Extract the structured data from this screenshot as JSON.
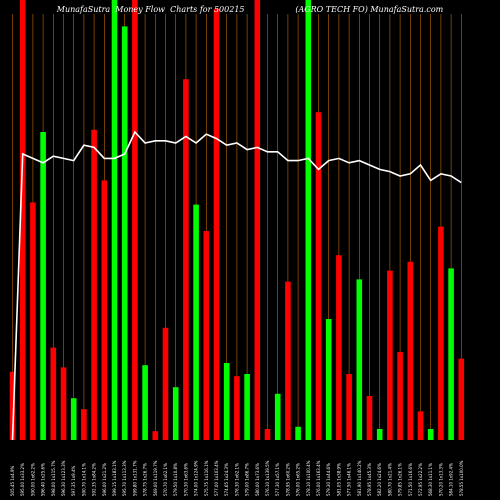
{
  "chart_data": {
    "type": "bar",
    "title": "MunafaSutra  Money Flow  Charts for 500215                    (AGRO TECH FO) MunafaSutra.com",
    "grid": true,
    "colors": {
      "background": "#000000",
      "up": "#00ff00",
      "down": "#ff0000",
      "grid": "#ff8c00",
      "line": "#ffffff",
      "text": "#ffffff"
    },
    "ylim": [
      0,
      100
    ],
    "categories": [
      "505.45 1x4.9%",
      "595.00 1x33.2%",
      "590.00 1x62.2%",
      "596.40 1x25.6%",
      "598.00 1x115.7%",
      "596.30 1x123.3%",
      "597.35 1x9.4%",
      "590.70 1x14.1%",
      "592.35 1x84.2%",
      "596.00 1x21.2%",
      "599.15 1x183.1%",
      "595.70 1x113.3%",
      "599.80 1x131.7%",
      "578.75 1x26.7%",
      "569.00 1x119.7%",
      "570.70 1x62.1%",
      "579.50 1x10.8%",
      "570.30 1x63.6%",
      "574.00 1x124.9%",
      "575.75 1x116.1%",
      "577.00 1x103.4%",
      "574.65 1x24.3%",
      "576.30 1x62.1%",
      "579.00 1x86.7%",
      "580.00 1x73.6%",
      "576.10 1x139.5%",
      "577.30 1x57.1%",
      "578.95 1x60.2%",
      "576.00 1x65.2%",
      "578.10 1x100.4%",
      "576.00 1x163.4%",
      "579.30 1x44.6%",
      "581.05 1x38.9%",
      "577.50 1x46.1%",
      "581.90 1x140.2%",
      "578.95 1x45.3%",
      "582.20 1x24.6%",
      "580.70 1x21.4%",
      "579.85 1x26.1%",
      "571.50 1x16.6%",
      "572.95 1x22.2%",
      "568.30 1x11.1%",
      "570.20 1x13.3%",
      "584.10 1x92.4%",
      "578.55 1x100.0%"
    ],
    "series": [
      {
        "type": "bar",
        "values": [
          15.5,
          100,
          54,
          70,
          21,
          16.5,
          9.5,
          7,
          70.5,
          59,
          100,
          94,
          100,
          17,
          2,
          25.5,
          12,
          82,
          53.5,
          47.5,
          98,
          17.5,
          14.5,
          15,
          100,
          2.5,
          10.5,
          36,
          3,
          100,
          74.5,
          27.5,
          42,
          15,
          36.5,
          10,
          2.5,
          38.5,
          20,
          40.5,
          6.5,
          2.5,
          48.5,
          39,
          18.5
        ],
        "colors": [
          "down",
          "down",
          "down",
          "up",
          "down",
          "down",
          "up",
          "down",
          "down",
          "down",
          "up",
          "up",
          "down",
          "up",
          "down",
          "down",
          "up",
          "down",
          "up",
          "down",
          "down",
          "up",
          "down",
          "up",
          "down",
          "down",
          "up",
          "down",
          "up",
          "up",
          "down",
          "up",
          "down",
          "down",
          "up",
          "down",
          "up",
          "down",
          "down",
          "down",
          "down",
          "up",
          "down",
          "up",
          "down"
        ]
      },
      {
        "type": "line",
        "values": [
          0,
          65,
          64,
          63,
          64.5,
          64,
          63.5,
          67,
          66.5,
          64,
          64,
          65,
          70,
          67.5,
          68,
          68,
          67.5,
          69,
          67.5,
          69.5,
          68.5,
          67,
          67.5,
          66,
          66.5,
          65.5,
          65.5,
          63.5,
          63.5,
          64,
          61.5,
          63.5,
          64,
          63,
          63.5,
          62.5,
          61.5,
          61,
          60,
          60.5,
          62.5,
          59,
          60.5,
          60,
          58.5
        ]
      }
    ]
  }
}
